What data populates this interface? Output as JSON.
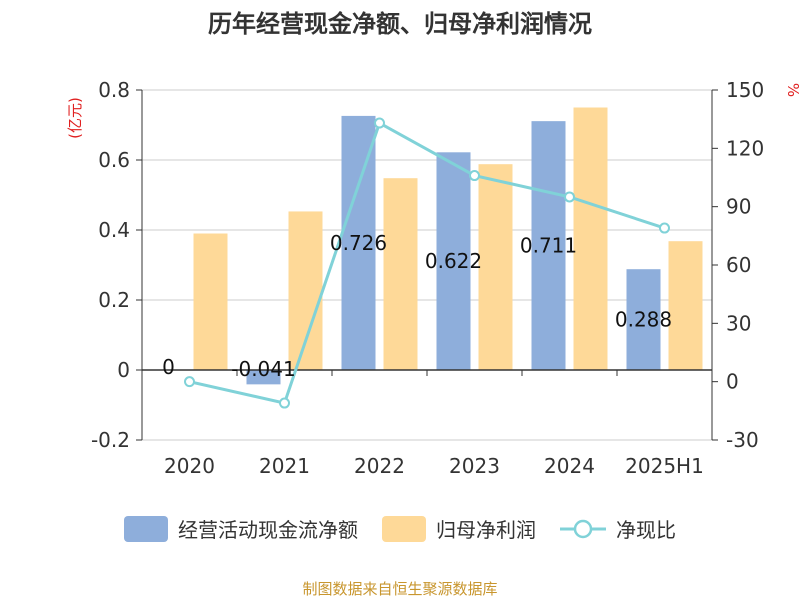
{
  "chart_data": {
    "type": "bar",
    "title": "历年经营现金净额、归母净利润情况",
    "categories": [
      "2020",
      "2021",
      "2022",
      "2023",
      "2024",
      "2025H1"
    ],
    "y_left_label": "(亿元)",
    "y_right_label": "%",
    "y_left_lim": [
      -0.2,
      0.8
    ],
    "y_left_ticks": [
      "0.8",
      "0.6",
      "0.4",
      "0.2",
      "0",
      "-0.2"
    ],
    "y_right_lim": [
      -30,
      150
    ],
    "y_right_ticks": [
      "150",
      "120",
      "90",
      "60",
      "30",
      "0",
      "-30"
    ],
    "grid": true,
    "legend_position": "bottom",
    "series": [
      {
        "name": "经营活动现金流净额",
        "kind": "bar",
        "axis": "left",
        "color": "#8eaedb",
        "values": [
          0,
          -0.041,
          0.726,
          0.622,
          0.711,
          0.288
        ],
        "labels": [
          "0",
          "-0.041",
          "0.726",
          "0.622",
          "0.711",
          "0.288"
        ]
      },
      {
        "name": "归母净利润",
        "kind": "bar",
        "axis": "left",
        "color": "#fed998",
        "values": [
          0.39,
          0.453,
          0.548,
          0.588,
          0.75,
          0.368
        ]
      },
      {
        "name": "净现比",
        "kind": "line",
        "axis": "right",
        "color": "#80d2d8",
        "values": [
          0,
          -11,
          133,
          106,
          95,
          79
        ]
      }
    ]
  },
  "source_note": "制图数据来自恒生聚源数据库"
}
